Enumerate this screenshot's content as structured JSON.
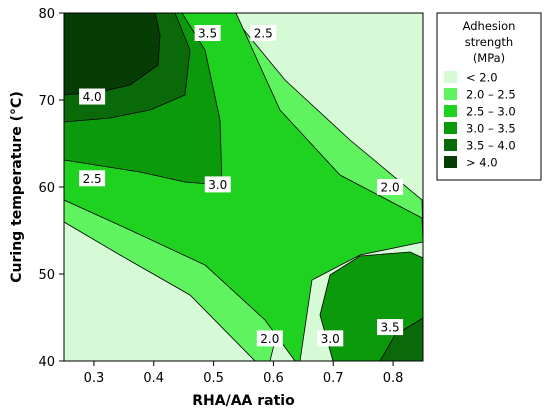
{
  "chart_data": {
    "type": "contour",
    "xlabel": "RHA/AA ratio",
    "ylabel": "Curing temperature (°C)",
    "xlim": [
      0.25,
      0.85
    ],
    "ylim": [
      40,
      80
    ],
    "x_ticks": [
      "0.3",
      "0.4",
      "0.5",
      "0.6",
      "0.7",
      "0.8"
    ],
    "y_ticks": [
      "40",
      "50",
      "60",
      "70",
      "80"
    ],
    "legend": {
      "title": [
        "Adhesion",
        "strength",
        "(MPa)"
      ],
      "placement": "right",
      "entries": [
        {
          "label": "<   2.0",
          "color": "#d6f9d6"
        },
        {
          "label": "2.0  –  2.5",
          "color": "#5ff45f"
        },
        {
          "label": "2.5  –  3.0",
          "color": "#1fd21f"
        },
        {
          "label": "3.0  –  3.5",
          "color": "#0b9a0b"
        },
        {
          "label": "3.5  –  4.0",
          "color": "#0a6a0a"
        },
        {
          "label": ">   4.0",
          "color": "#053d05"
        }
      ]
    },
    "contour_labels": [
      {
        "text": "3.5",
        "x": 0.49,
        "y": 77.7
      },
      {
        "text": "2.5",
        "x": 0.583,
        "y": 77.7
      },
      {
        "text": "4.0",
        "x": 0.297,
        "y": 70.4
      },
      {
        "text": "3.0",
        "x": 0.507,
        "y": 60.3
      },
      {
        "text": "2.5",
        "x": 0.297,
        "y": 61.0
      },
      {
        "text": "2.0",
        "x": 0.795,
        "y": 60.0
      },
      {
        "text": "2.0",
        "x": 0.594,
        "y": 42.6
      },
      {
        "text": "3.0",
        "x": 0.695,
        "y": 42.6
      },
      {
        "text": "3.5",
        "x": 0.795,
        "y": 43.9
      }
    ]
  }
}
